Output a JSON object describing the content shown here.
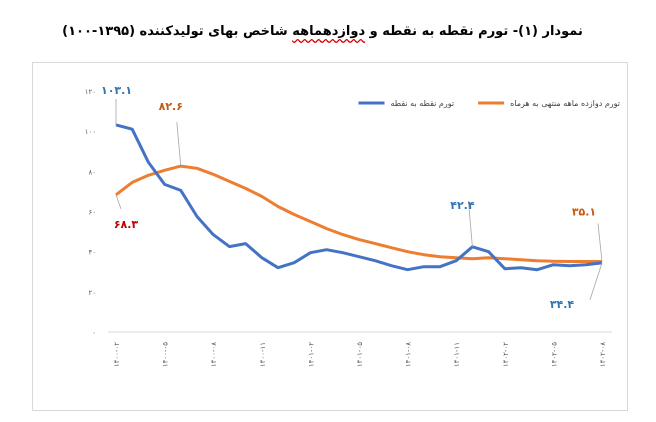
{
  "title": {
    "before": "نمودار (۱)- تورم نقطه به نقطه و ",
    "underlined": "دوازدهماهه",
    "after": " شاخص بهای تولیدکننده (۱۳۹۵-۱۰۰)"
  },
  "chart_data": {
    "type": "line",
    "title": "نمودار (۱)- تورم نقطه به نقطه و دوازدهماهه شاخص بهای تولیدکننده (۱۳۹۵-۱۰۰)",
    "categories": [
      "۱۴۰۰-۰۲",
      "۱۴۰۰-۰۳",
      "۱۴۰۰-۰۴",
      "۱۴۰۰-۰۵",
      "۱۴۰۰-۰۶",
      "۱۴۰۰-۰۷",
      "۱۴۰۰-۰۸",
      "۱۴۰۰-۰۹",
      "۱۴۰۰-۱۰",
      "۱۴۰۰-۱۱",
      "۱۴۰۰-۱۲",
      "۱۴۰۱-۰۱",
      "۱۴۰۱-۰۲",
      "۱۴۰۱-۰۳",
      "۱۴۰۱-۰۴",
      "۱۴۰۱-۰۵",
      "۱۴۰۱-۰۶",
      "۱۴۰۱-۰۷",
      "۱۴۰۱-۰۸",
      "۱۴۰۱-۰۹",
      "۱۴۰۱-۱۰",
      "۱۴۰۱-۱۱",
      "۱۴۰۱-۱۲",
      "۱۴۰۲-۰۱",
      "۱۴۰۲-۰۲",
      "۱۴۰۲-۰۳",
      "۱۴۰۲-۰۴",
      "۱۴۰۲-۰۵",
      "۱۴۰۲-۰۶",
      "۱۴۰۲-۰۷",
      "۱۴۰۲-۰۸"
    ],
    "x_tick_every": 3,
    "ylim": [
      0,
      120
    ],
    "y_ticks": [
      0,
      20,
      40,
      60,
      80,
      100,
      120
    ],
    "y_tick_labels": [
      "۰",
      "۲۰",
      "۴۰",
      "۶۰",
      "۸۰",
      "۱۰۰",
      "۱۲۰"
    ],
    "grid": false,
    "legend": "top",
    "series": [
      {
        "name": "تورم نقطه به نقطه",
        "color": "#4472c4",
        "values": [
          103.1,
          101,
          84.5,
          73.5,
          70.5,
          57.5,
          48.5,
          42.5,
          44,
          37,
          32,
          34.5,
          39.5,
          41,
          39.5,
          37.5,
          35.5,
          33,
          31,
          32.5,
          32.5,
          35.5,
          42.4,
          40,
          31.5,
          32,
          31,
          33.5,
          33,
          33.5,
          34.4
        ]
      },
      {
        "name": "تورم دوازده ماهه منتهی به هرماه",
        "color": "#ed7d31",
        "values": [
          68.3,
          74.5,
          78,
          80.5,
          82.6,
          81.5,
          78.5,
          75,
          71.5,
          67.5,
          62.5,
          58.5,
          55,
          51.5,
          48.5,
          46,
          44,
          42,
          40,
          38.5,
          37.5,
          37,
          36.5,
          37,
          36.5,
          36,
          35.5,
          35.2,
          35.1,
          35.1,
          35.1
        ]
      }
    ],
    "data_labels": [
      {
        "series": 0,
        "index": 0,
        "text": "۱۰۳.۱",
        "color": "#2e75b6"
      },
      {
        "series": 0,
        "index": 22,
        "text": "۴۲.۴",
        "color": "#2e75b6"
      },
      {
        "series": 0,
        "index": 30,
        "text": "۳۴.۴",
        "color": "#2e75b6"
      },
      {
        "series": 1,
        "index": 0,
        "text": "۶۸.۳",
        "color": "#c00000"
      },
      {
        "series": 1,
        "index": 4,
        "text": "۸۲.۶",
        "color": "#c55a11"
      },
      {
        "series": 1,
        "index": 30,
        "text": "۳۵.۱",
        "color": "#c55a11"
      }
    ]
  }
}
